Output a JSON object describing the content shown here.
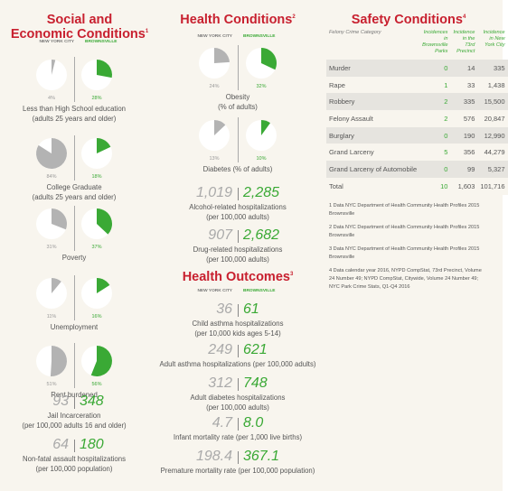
{
  "social": {
    "title": [
      "Social and",
      "Economic Conditions"
    ],
    "note": "1",
    "col_nyc": "NEW YORK CITY",
    "col_bv": "BROWNSVILLE",
    "pies": [
      {
        "nyc": {
          "value": 4,
          "label": "4%"
        },
        "brownsville": {
          "value": 28,
          "label": "28%"
        },
        "caption": [
          "Less than High School education",
          "(adults 25 years and older)"
        ]
      },
      {
        "nyc": {
          "value": 84,
          "label": "84%"
        },
        "brownsville": {
          "value": 18,
          "label": "18%"
        },
        "caption": [
          "College Graduate",
          "(adults 25 years and older)"
        ]
      },
      {
        "nyc": {
          "value": 31,
          "label": "31%"
        },
        "brownsville": {
          "value": 37,
          "label": "37%"
        },
        "caption": [
          "Poverty"
        ]
      },
      {
        "nyc": {
          "value": 11,
          "label": "11%"
        },
        "brownsville": {
          "value": 16,
          "label": "16%"
        },
        "caption": [
          "Unemployment"
        ]
      },
      {
        "nyc": {
          "value": 51,
          "label": "51%"
        },
        "brownsville": {
          "value": 56,
          "label": "56%"
        },
        "caption": [
          "Rent burdened"
        ]
      }
    ],
    "rates": [
      {
        "nyc": "93",
        "brownsville": "348",
        "caption": [
          "Jail Incarceration",
          "(per 100,000 adults 16 and older)"
        ]
      },
      {
        "nyc": "64",
        "brownsville": "180",
        "caption": [
          "Non-fatal assault hospitalizations",
          "(per 100,000 population)"
        ]
      }
    ]
  },
  "health_conditions": {
    "title": [
      "Health Conditions"
    ],
    "note": "2",
    "col_nyc": "NEW YORK CITY",
    "col_bv": "BROWNSVILLE",
    "pies": [
      {
        "nyc": {
          "value": 24,
          "label": "24%"
        },
        "brownsville": {
          "value": 32,
          "label": "32%"
        },
        "caption": [
          "Obesity",
          "(% of adults)"
        ]
      },
      {
        "nyc": {
          "value": 13,
          "label": "13%"
        },
        "brownsville": {
          "value": 10,
          "label": "10%"
        },
        "caption": [
          "Diabetes (% of adults)"
        ]
      }
    ],
    "rates": [
      {
        "nyc": "1,019",
        "brownsville": "2,285",
        "caption": [
          "Alcohol-related hospitalizations",
          "(per 100,000 adults)"
        ]
      },
      {
        "nyc": "907",
        "brownsville": "2,682",
        "caption": [
          "Drug-related hospitalizations",
          "(per 100,000 adults)"
        ]
      }
    ]
  },
  "health_outcomes": {
    "title": [
      "Health Outcomes"
    ],
    "note": "3",
    "col_nyc": "NEW YORK CITY",
    "col_bv": "BROWNSVILLE",
    "rates": [
      {
        "nyc": "36",
        "brownsville": "61",
        "caption": [
          "Child asthma hospitalizations",
          "(per 10,000 kids ages 5-14)"
        ]
      },
      {
        "nyc": "249",
        "brownsville": "621",
        "caption": [
          "Adult asthma hospitalizations (per 100,000 adults)"
        ]
      },
      {
        "nyc": "312",
        "brownsville": "748",
        "caption": [
          "Adult diabetes hospitalizations",
          "(per 100,000 adults)"
        ]
      },
      {
        "nyc": "4.7",
        "brownsville": "8.0",
        "caption": [
          "Infant mortality rate (per 1,000 live births)"
        ]
      },
      {
        "nyc": "198.4",
        "brownsville": "367.1",
        "caption": [
          "Premature mortality rate (per 100,000 population)"
        ]
      }
    ]
  },
  "safety": {
    "title": [
      "Safety Conditions"
    ],
    "note": "4",
    "table": {
      "header": [
        "Felony Crime Category",
        "Incidences in Brownsville Parks",
        "Incidence in the 73rd Precinct",
        "Incidence in New York City"
      ],
      "rows": [
        [
          "Murder",
          "0",
          "14",
          "335"
        ],
        [
          "Rape",
          "1",
          "33",
          "1,438"
        ],
        [
          "Robbery",
          "2",
          "335",
          "15,500"
        ],
        [
          "Felony Assault",
          "2",
          "576",
          "20,847"
        ],
        [
          "Burglary",
          "0",
          "190",
          "12,990"
        ],
        [
          "Grand Larceny",
          "5",
          "356",
          "44,279"
        ],
        [
          "Grand Larceny of Automobile",
          "0",
          "99",
          "5,327"
        ],
        [
          "Total",
          "10",
          "1,603",
          "101,716"
        ]
      ]
    },
    "footnotes": [
      "1 Data NYC Department of Health Community Health Profiles 2015 Brownsville",
      "2 Data NYC Department of Health Community Health Profiles 2015 Brownsville",
      "3 Data NYC Department of Health Community Health Profiles 2015 Brownsville",
      "4 Data calendar year 2016, NYPD CompStat, 73rd Precinct, Volume 24 Number 49; NYPD CompStat, Citywide, Volume 24 Number 49; NYC Park Crime Stats, Q1-Q4 2016"
    ]
  }
}
